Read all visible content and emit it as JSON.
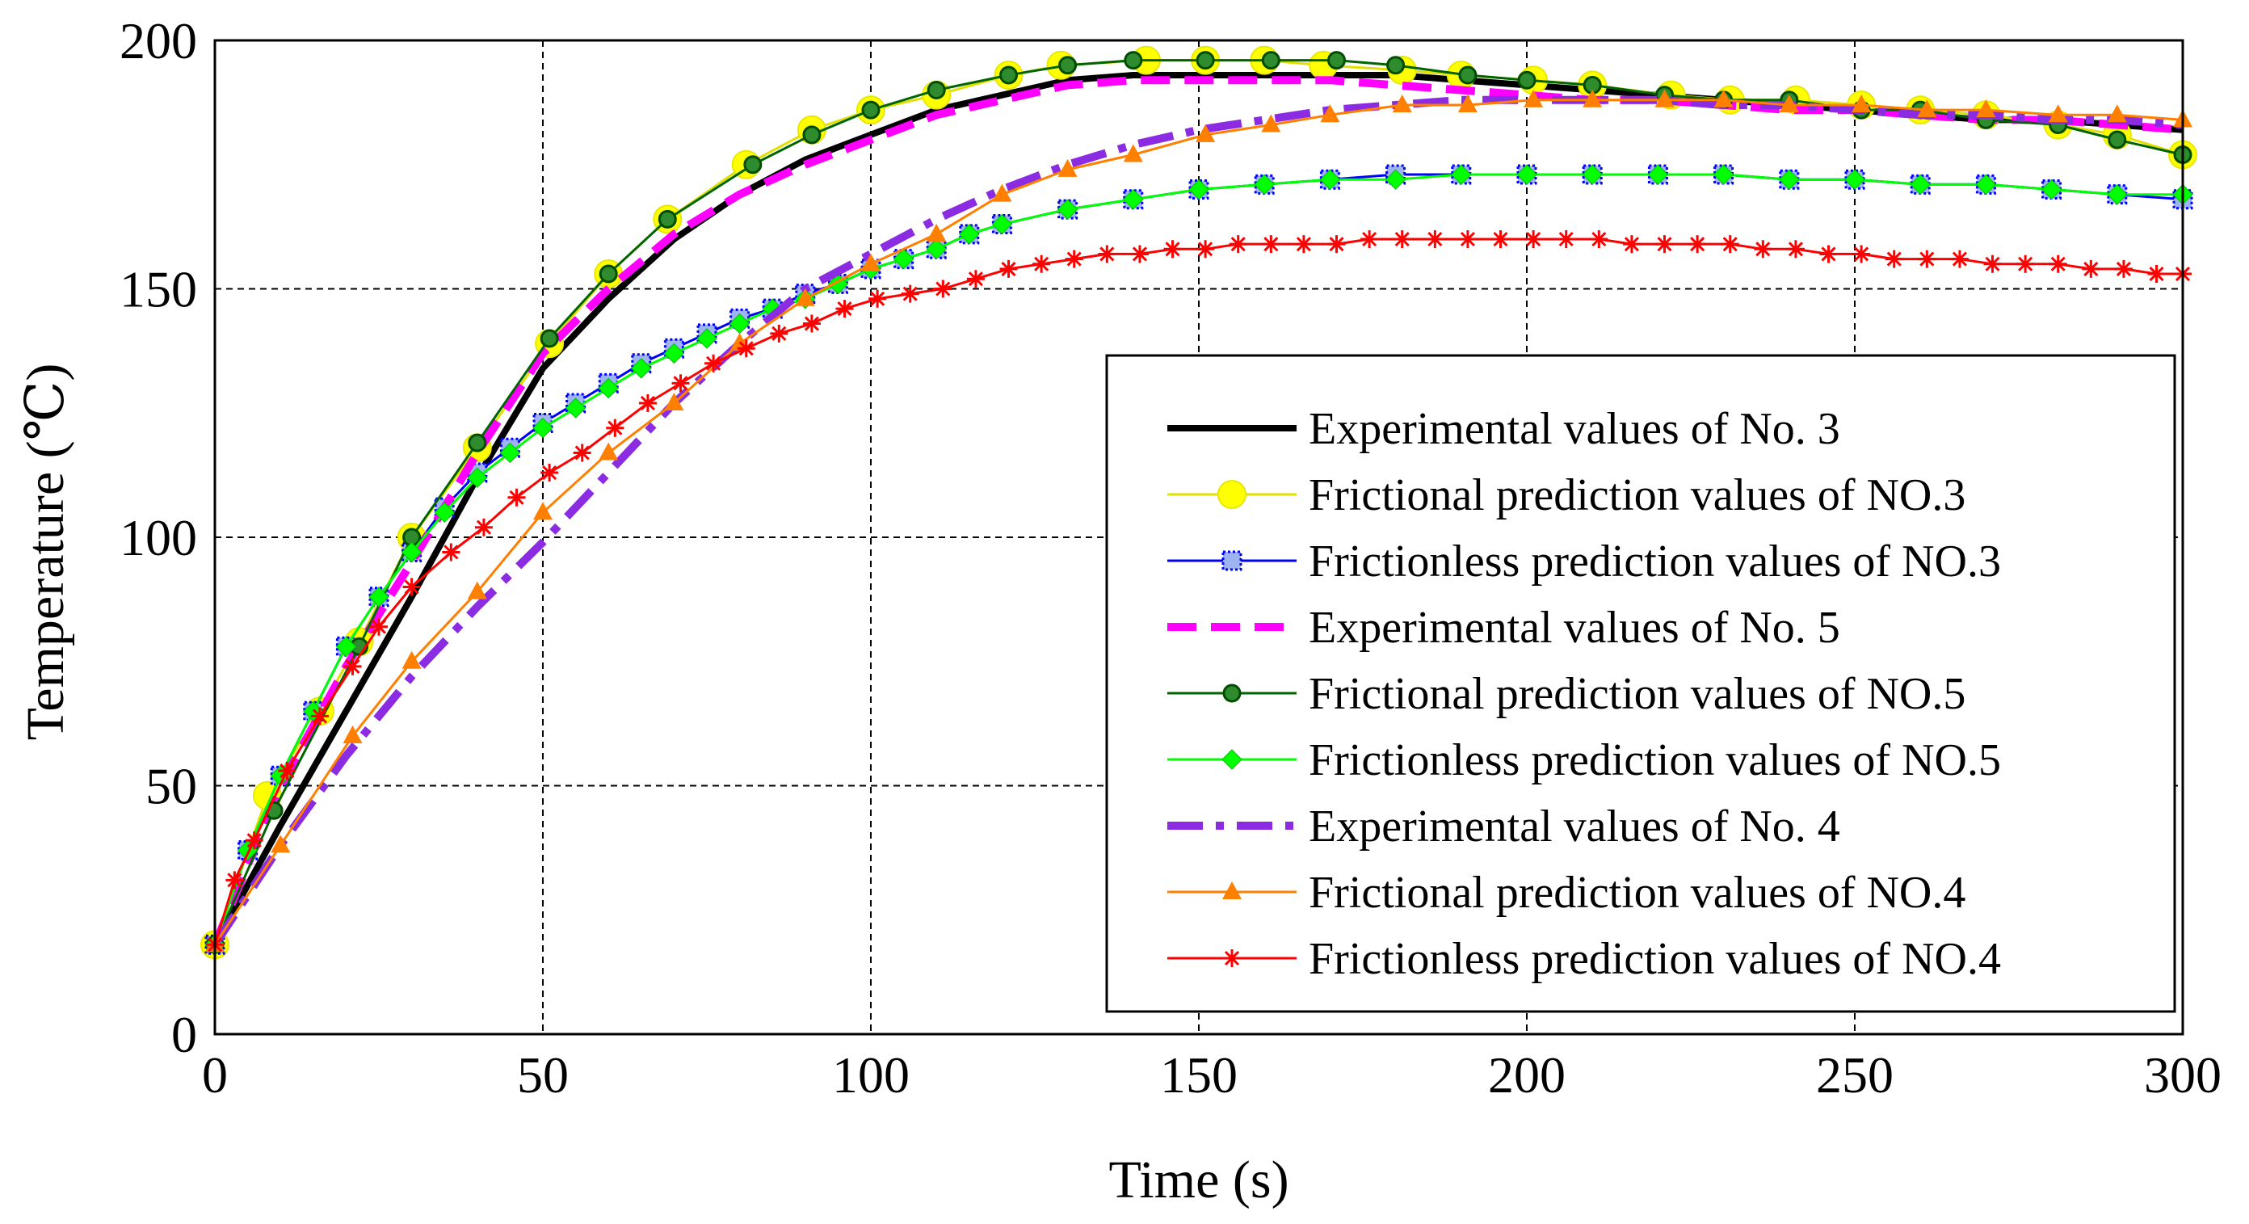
{
  "chart_data": {
    "type": "line",
    "title": "",
    "xlabel": "Time (s)",
    "ylabel": "Temperature (℃)",
    "xlim": [
      0,
      300
    ],
    "ylim": [
      0,
      200
    ],
    "xticks": [
      0,
      50,
      100,
      150,
      200,
      250,
      300
    ],
    "yticks": [
      0,
      50,
      100,
      150,
      200
    ],
    "grid": "dashed",
    "legend_position": "lower-right",
    "series": [
      {
        "name": "Experimental values of No. 3",
        "color": "#000000",
        "style": "solid",
        "marker": "none",
        "x": [
          0,
          10,
          20,
          30,
          40,
          50,
          60,
          70,
          80,
          90,
          100,
          110,
          120,
          130,
          140,
          150,
          160,
          170,
          180,
          190,
          200,
          210,
          220,
          230,
          240,
          250,
          260,
          270,
          280,
          290,
          300
        ],
        "y": [
          18,
          42,
          65,
          88,
          112,
          134,
          148,
          160,
          169,
          176,
          181,
          186,
          189,
          192,
          193,
          193,
          193,
          193,
          193,
          192,
          191,
          190,
          189,
          188,
          187,
          186,
          185,
          184,
          184,
          183,
          182
        ]
      },
      {
        "name": "Frictional prediction values of NO.3",
        "color": "#ffff00",
        "style": "solid",
        "marker": "big-circle",
        "x": [
          0,
          8,
          16,
          22,
          30,
          40,
          51,
          60,
          69,
          81,
          91,
          100,
          110,
          121,
          129,
          142,
          151,
          160,
          169,
          181,
          190,
          201,
          210,
          222,
          231,
          241,
          251,
          260,
          270,
          281,
          290,
          300
        ],
        "y": [
          18,
          48,
          65,
          79,
          100,
          118,
          139,
          153,
          164,
          175,
          182,
          186,
          189,
          193,
          195,
          196,
          196,
          196,
          195,
          194,
          193,
          192,
          191,
          189,
          188,
          188,
          187,
          186,
          185,
          183,
          181,
          177
        ]
      },
      {
        "name": "Frictionless prediction  values of NO.3",
        "color": "#0000ff",
        "style": "solid",
        "marker": "square",
        "x": [
          0,
          5,
          10,
          15,
          20,
          25,
          30,
          35,
          40,
          45,
          50,
          55,
          60,
          65,
          70,
          75,
          80,
          85,
          90,
          95,
          100,
          105,
          110,
          115,
          120,
          130,
          140,
          150,
          160,
          170,
          180,
          190,
          200,
          210,
          220,
          230,
          240,
          250,
          260,
          270,
          280,
          290,
          300
        ],
        "y": [
          18,
          37,
          52,
          65,
          78,
          88,
          97,
          106,
          113,
          118,
          123,
          127,
          131,
          135,
          138,
          141,
          144,
          146,
          149,
          151,
          154,
          156,
          158,
          161,
          163,
          166,
          168,
          170,
          171,
          172,
          173,
          173,
          173,
          173,
          173,
          173,
          172,
          172,
          171,
          171,
          170,
          169,
          168
        ]
      },
      {
        "name": "Experimental values of No. 5",
        "color": "#ff00ff",
        "style": "dashed",
        "marker": "none",
        "x": [
          0,
          10,
          20,
          30,
          40,
          50,
          60,
          70,
          80,
          90,
          100,
          110,
          120,
          130,
          140,
          150,
          160,
          170,
          180,
          190,
          200,
          210,
          220,
          230,
          240,
          250,
          260,
          270,
          280,
          290,
          300
        ],
        "y": [
          18,
          50,
          74,
          95,
          117,
          137,
          150,
          161,
          169,
          175,
          180,
          185,
          188,
          191,
          192,
          192,
          192,
          192,
          191,
          190,
          189,
          188,
          188,
          187,
          186,
          186,
          185,
          184,
          184,
          183,
          182
        ]
      },
      {
        "name": "Frictional prediction values of NO.5",
        "color": "#006400",
        "style": "solid",
        "marker": "dot",
        "x": [
          0,
          9,
          22,
          30,
          40,
          51,
          60,
          69,
          82,
          91,
          100,
          110,
          121,
          130,
          140,
          151,
          161,
          171,
          180,
          191,
          200,
          210,
          221,
          230,
          240,
          251,
          260,
          270,
          281,
          290,
          300
        ],
        "y": [
          18,
          45,
          78,
          100,
          119,
          140,
          153,
          164,
          175,
          181,
          186,
          190,
          193,
          195,
          196,
          196,
          196,
          196,
          195,
          193,
          192,
          191,
          189,
          188,
          188,
          186,
          186,
          184,
          183,
          180,
          177
        ]
      },
      {
        "name": "Frictionless prediction  values of NO.5",
        "color": "#00ff00",
        "style": "solid",
        "marker": "diamond",
        "x": [
          0,
          5,
          10,
          15,
          20,
          25,
          30,
          35,
          40,
          45,
          50,
          55,
          60,
          65,
          70,
          75,
          80,
          85,
          90,
          95,
          100,
          105,
          110,
          115,
          120,
          130,
          140,
          150,
          160,
          170,
          180,
          190,
          200,
          210,
          220,
          230,
          240,
          250,
          260,
          270,
          280,
          290,
          300
        ],
        "y": [
          18,
          37,
          52,
          65,
          78,
          88,
          97,
          105,
          112,
          117,
          122,
          126,
          130,
          134,
          137,
          140,
          143,
          146,
          148,
          151,
          154,
          156,
          158,
          161,
          163,
          166,
          168,
          170,
          171,
          172,
          172,
          173,
          173,
          173,
          173,
          173,
          172,
          172,
          171,
          171,
          170,
          169,
          169
        ]
      },
      {
        "name": "Experimental values of No. 4",
        "color": "#8b2be2",
        "style": "dashdot",
        "marker": "none",
        "x": [
          0,
          10,
          20,
          30,
          40,
          50,
          60,
          70,
          80,
          90,
          100,
          110,
          120,
          130,
          140,
          150,
          160,
          170,
          180,
          190,
          200,
          210,
          220,
          230,
          240,
          250,
          260,
          270,
          280,
          290,
          300
        ],
        "y": [
          18,
          38,
          56,
          72,
          86,
          99,
          113,
          127,
          139,
          150,
          157,
          164,
          170,
          175,
          179,
          182,
          184,
          186,
          187,
          188,
          188,
          188,
          188,
          187,
          187,
          186,
          185,
          185,
          184,
          184,
          183
        ]
      },
      {
        "name": "Frictional prediction values of NO.4",
        "color": "#ff7f00",
        "style": "solid",
        "marker": "triangle",
        "x": [
          0,
          10,
          21,
          30,
          40,
          50,
          60,
          70,
          80,
          90,
          100,
          110,
          120,
          130,
          140,
          151,
          161,
          170,
          181,
          191,
          201,
          210,
          221,
          230,
          240,
          251,
          261,
          270,
          281,
          290,
          300
        ],
        "y": [
          18,
          38,
          60,
          75,
          89,
          105,
          117,
          127,
          139,
          148,
          155,
          161,
          169,
          174,
          177,
          181,
          183,
          185,
          187,
          187,
          188,
          188,
          188,
          188,
          187,
          187,
          186,
          186,
          185,
          185,
          184
        ]
      },
      {
        "name": "Frictionless prediction  values of NO.4",
        "color": "#ff0000",
        "style": "solid",
        "marker": "star",
        "x": [
          0,
          3,
          6,
          11,
          16,
          21,
          25,
          30,
          36,
          41,
          46,
          51,
          56,
          61,
          66,
          71,
          76,
          81,
          86,
          91,
          96,
          101,
          106,
          111,
          116,
          121,
          126,
          131,
          136,
          141,
          146,
          151,
          156,
          161,
          166,
          171,
          176,
          181,
          186,
          191,
          196,
          201,
          206,
          211,
          216,
          221,
          226,
          231,
          236,
          241,
          246,
          251,
          256,
          261,
          266,
          271,
          276,
          281,
          286,
          291,
          296,
          300
        ],
        "y": [
          18,
          31,
          39,
          53,
          64,
          74,
          82,
          90,
          97,
          102,
          108,
          113,
          117,
          122,
          127,
          131,
          135,
          138,
          141,
          143,
          146,
          148,
          149,
          150,
          152,
          154,
          155,
          156,
          157,
          157,
          158,
          158,
          159,
          159,
          159,
          159,
          160,
          160,
          160,
          160,
          160,
          160,
          160,
          160,
          159,
          159,
          159,
          159,
          158,
          158,
          157,
          157,
          156,
          156,
          156,
          155,
          155,
          155,
          154,
          154,
          153,
          153
        ]
      }
    ]
  }
}
